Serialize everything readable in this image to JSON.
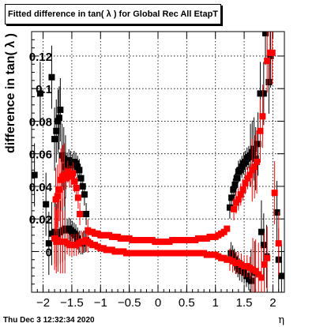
{
  "chart_data": {
    "type": "scatter",
    "title": "Fitted difference in tan( λ ) for Global Rec All EtapT",
    "xlabel": "η",
    "ylabel": "difference in tan( λ )",
    "xlim": [
      -2.2,
      2.2
    ],
    "ylim": [
      -0.025,
      0.135
    ],
    "grid": true,
    "x_ticks": [
      -2,
      -1.5,
      -1,
      -0.5,
      0,
      0.5,
      1,
      1.5,
      2
    ],
    "x_tick_labels": [
      "−2",
      "−1.5",
      "−1",
      "−0.5",
      "0",
      "0.5",
      "1",
      "1.5",
      "2"
    ],
    "y_ticks": [
      0,
      0.02,
      0.04,
      0.06,
      0.08,
      0.1,
      0.12
    ],
    "y_tick_labels": [
      "0",
      "0.02",
      "0.04",
      "0.06",
      "0.08",
      "0.1",
      "0.12"
    ],
    "series": [
      {
        "color": "#000000",
        "marker": "square",
        "points": [
          [
            -2.15,
            0.047
          ],
          [
            -2.05,
            0.097
          ],
          [
            -1.95,
            0.029
          ],
          [
            -1.9,
            0.005
          ],
          [
            -1.85,
            0.107
          ],
          [
            -1.8,
            0.069
          ],
          [
            -1.77,
            0.074
          ],
          [
            -1.74,
            0.08
          ],
          [
            -1.72,
            0.082
          ],
          [
            -1.7,
            0.087
          ],
          [
            -1.67,
            0.059
          ],
          [
            -1.64,
            0.057
          ],
          [
            -1.61,
            0.052
          ],
          [
            -1.58,
            0.054
          ],
          [
            -1.55,
            0.056
          ],
          [
            -1.52,
            0.055
          ],
          [
            -1.49,
            0.053
          ],
          [
            -1.46,
            0.055
          ],
          [
            -1.43,
            0.054
          ],
          [
            -1.4,
            0.052
          ],
          [
            -1.37,
            0.05
          ],
          [
            -1.34,
            0.045
          ],
          [
            -1.31,
            0.04
          ],
          [
            -1.28,
            0.035
          ],
          [
            -1.25,
            0.023
          ],
          [
            -1.85,
            0.011
          ],
          [
            -1.8,
            0.012
          ],
          [
            -1.77,
            0.01
          ],
          [
            -1.74,
            0.011
          ],
          [
            -1.7,
            0.012
          ],
          [
            -1.66,
            0.013
          ],
          [
            -1.62,
            0.014
          ],
          [
            -1.58,
            0.013
          ],
          [
            -1.55,
            0.014
          ],
          [
            -1.52,
            0.013
          ],
          [
            -1.49,
            0.012
          ],
          [
            -1.46,
            0.011
          ],
          [
            -1.43,
            0.01
          ],
          [
            -1.4,
            0.008
          ],
          [
            -1.37,
            0.006
          ],
          [
            -1.34,
            0.005
          ],
          [
            -1.31,
            0.005
          ],
          [
            -1.28,
            0.006
          ],
          [
            -1.25,
            0.007
          ],
          [
            1.25,
            0.027
          ],
          [
            1.28,
            0.033
          ],
          [
            1.31,
            0.038
          ],
          [
            1.34,
            0.041
          ],
          [
            1.37,
            0.045
          ],
          [
            1.4,
            0.049
          ],
          [
            1.43,
            0.05
          ],
          [
            1.46,
            0.052
          ],
          [
            1.49,
            0.054
          ],
          [
            1.52,
            0.055
          ],
          [
            1.55,
            0.057
          ],
          [
            1.58,
            0.058
          ],
          [
            1.61,
            0.059
          ],
          [
            1.64,
            0.061
          ],
          [
            1.67,
            0.063
          ],
          [
            1.7,
            0.057
          ],
          [
            1.74,
            0.066
          ],
          [
            1.78,
            0.097
          ],
          [
            1.84,
            0.097
          ],
          [
            1.87,
            0.134
          ],
          [
            1.93,
            0.104
          ],
          [
            1.96,
            0.12
          ],
          [
            2.07,
            0.024
          ],
          [
            2.1,
            -0.005
          ],
          [
            1.8,
            0.012
          ],
          [
            1.84,
            0.004
          ],
          [
            1.89,
            -0.003
          ],
          [
            1.27,
            -0.001
          ],
          [
            1.3,
            -0.003
          ],
          [
            1.33,
            -0.005
          ],
          [
            1.36,
            -0.007
          ],
          [
            1.39,
            -0.009
          ],
          [
            1.42,
            -0.011
          ],
          [
            1.46,
            -0.012
          ],
          [
            1.5,
            -0.013
          ],
          [
            1.54,
            -0.015
          ],
          [
            1.58,
            -0.017
          ],
          [
            1.62,
            -0.018
          ],
          [
            1.68,
            -0.013
          ],
          [
            2.15,
            -0.015
          ]
        ]
      },
      {
        "color": "#ff0000",
        "marker": "square",
        "points": [
          [
            -1.78,
            0.032
          ],
          [
            -1.75,
            0.034
          ],
          [
            -1.72,
            0.038
          ],
          [
            -1.69,
            0.044
          ],
          [
            -1.66,
            0.046
          ],
          [
            -1.63,
            0.047
          ],
          [
            -1.6,
            0.045
          ],
          [
            -1.57,
            0.049
          ],
          [
            -1.54,
            0.046
          ],
          [
            -1.51,
            0.046
          ],
          [
            -1.48,
            0.048
          ],
          [
            -1.45,
            0.043
          ],
          [
            -1.42,
            0.039
          ],
          [
            -1.39,
            0.033
          ],
          [
            -1.36,
            0.023
          ],
          [
            -1.8,
            0.008
          ],
          [
            -1.77,
            0.006
          ],
          [
            -1.74,
            0.007
          ],
          [
            -1.7,
            0.006
          ],
          [
            -1.66,
            0.006
          ],
          [
            -1.62,
            0.006
          ],
          [
            -1.58,
            0.005
          ],
          [
            -1.54,
            0.004
          ],
          [
            -1.5,
            0.004
          ],
          [
            -1.46,
            0.004
          ],
          [
            -1.42,
            0.004
          ],
          [
            -1.38,
            0.005
          ],
          [
            -1.34,
            0.006
          ],
          [
            -1.3,
            0.006
          ],
          [
            -1.26,
            0.007
          ],
          [
            -1.22,
            0.006
          ],
          [
            -1.18,
            0.005
          ],
          [
            -1.14,
            0.004
          ],
          [
            -1.1,
            0.004
          ],
          [
            -1.05,
            0.003
          ],
          [
            -1.0,
            0.002
          ],
          [
            -0.95,
            0.002
          ],
          [
            -0.9,
            0.001
          ],
          [
            -0.85,
            0.001
          ],
          [
            -0.8,
            0.001
          ],
          [
            -0.75,
            0.0
          ],
          [
            -0.7,
            0.0
          ],
          [
            -0.65,
            0.0
          ],
          [
            -0.6,
            0.0
          ],
          [
            -0.55,
            -0.001
          ],
          [
            -0.5,
            -0.001
          ],
          [
            -0.45,
            -0.001
          ],
          [
            -0.4,
            -0.001
          ],
          [
            -0.35,
            -0.001
          ],
          [
            -0.3,
            -0.001
          ],
          [
            -0.25,
            -0.001
          ],
          [
            -0.2,
            -0.001
          ],
          [
            -0.15,
            -0.001
          ],
          [
            -0.1,
            -0.001
          ],
          [
            -0.05,
            -0.001
          ],
          [
            0.0,
            -0.001
          ],
          [
            0.05,
            -0.001
          ],
          [
            0.1,
            -0.001
          ],
          [
            0.15,
            -0.001
          ],
          [
            0.2,
            -0.001
          ],
          [
            0.25,
            -0.001
          ],
          [
            0.3,
            -0.001
          ],
          [
            0.35,
            -0.001
          ],
          [
            0.4,
            -0.001
          ],
          [
            0.45,
            -0.001
          ],
          [
            0.5,
            -0.001
          ],
          [
            0.55,
            -0.001
          ],
          [
            0.6,
            -0.001
          ],
          [
            0.65,
            -0.001
          ],
          [
            0.7,
            -0.001
          ],
          [
            0.75,
            -0.001
          ],
          [
            0.8,
            -0.001
          ],
          [
            0.85,
            -0.002
          ],
          [
            0.9,
            -0.002
          ],
          [
            0.95,
            -0.002
          ],
          [
            1.0,
            -0.002
          ],
          [
            1.05,
            -0.003
          ],
          [
            1.1,
            -0.004
          ],
          [
            1.15,
            -0.004
          ],
          [
            1.2,
            -0.005
          ],
          [
            1.25,
            -0.005
          ],
          [
            1.3,
            -0.006
          ],
          [
            1.35,
            -0.007
          ],
          [
            1.4,
            -0.007
          ],
          [
            1.45,
            -0.008
          ],
          [
            1.5,
            -0.009
          ],
          [
            1.55,
            -0.009
          ],
          [
            1.6,
            -0.01
          ],
          [
            1.65,
            -0.011
          ],
          [
            1.7,
            -0.012
          ],
          [
            1.75,
            -0.014
          ],
          [
            1.8,
            -0.016
          ],
          [
            1.85,
            -0.008
          ],
          [
            1.9,
            -0.004
          ],
          [
            -1.22,
            0.013
          ],
          [
            -1.18,
            0.012
          ],
          [
            -1.14,
            0.012
          ],
          [
            -1.1,
            0.011
          ],
          [
            -1.05,
            0.011
          ],
          [
            -1.0,
            0.01
          ],
          [
            -0.95,
            0.01
          ],
          [
            -0.9,
            0.01
          ],
          [
            -0.85,
            0.01
          ],
          [
            -0.8,
            0.009
          ],
          [
            -0.75,
            0.009
          ],
          [
            -0.7,
            0.009
          ],
          [
            -0.65,
            0.008
          ],
          [
            -0.6,
            0.008
          ],
          [
            -0.55,
            0.008
          ],
          [
            -0.5,
            0.008
          ],
          [
            -0.45,
            0.007
          ],
          [
            -0.4,
            0.007
          ],
          [
            -0.35,
            0.007
          ],
          [
            -0.3,
            0.007
          ],
          [
            -0.25,
            0.007
          ],
          [
            -0.2,
            0.007
          ],
          [
            -0.15,
            0.007
          ],
          [
            -0.1,
            0.007
          ],
          [
            -0.05,
            0.006
          ],
          [
            0.0,
            0.006
          ],
          [
            0.05,
            0.006
          ],
          [
            0.1,
            0.006
          ],
          [
            0.15,
            0.006
          ],
          [
            0.2,
            0.006
          ],
          [
            0.25,
            0.007
          ],
          [
            0.3,
            0.007
          ],
          [
            0.35,
            0.007
          ],
          [
            0.4,
            0.007
          ],
          [
            0.45,
            0.007
          ],
          [
            0.5,
            0.007
          ],
          [
            0.55,
            0.007
          ],
          [
            0.6,
            0.007
          ],
          [
            0.65,
            0.007
          ],
          [
            0.7,
            0.008
          ],
          [
            0.75,
            0.008
          ],
          [
            0.8,
            0.008
          ],
          [
            0.85,
            0.008
          ],
          [
            0.9,
            0.009
          ],
          [
            0.95,
            0.009
          ],
          [
            1.0,
            0.009
          ],
          [
            1.05,
            0.01
          ],
          [
            1.1,
            0.011
          ],
          [
            1.15,
            0.012
          ],
          [
            1.2,
            0.014
          ],
          [
            1.32,
            0.026
          ],
          [
            1.36,
            0.03
          ],
          [
            1.4,
            0.032
          ],
          [
            1.44,
            0.035
          ],
          [
            1.48,
            0.038
          ],
          [
            1.52,
            0.042
          ],
          [
            1.56,
            0.045
          ],
          [
            1.6,
            0.047
          ],
          [
            1.64,
            0.05
          ],
          [
            1.68,
            0.052
          ],
          [
            1.72,
            0.055
          ],
          [
            1.78,
            0.074
          ],
          [
            1.82,
            0.083
          ],
          [
            1.9,
            0.117
          ],
          [
            1.95,
            0.122
          ],
          [
            1.99,
            0.122
          ],
          [
            2.03,
            0.036
          ],
          [
            2.1,
            0.005
          ]
        ]
      }
    ]
  },
  "footer": {
    "timestamp": "Thu Dec  3 12:32:34 2020"
  }
}
